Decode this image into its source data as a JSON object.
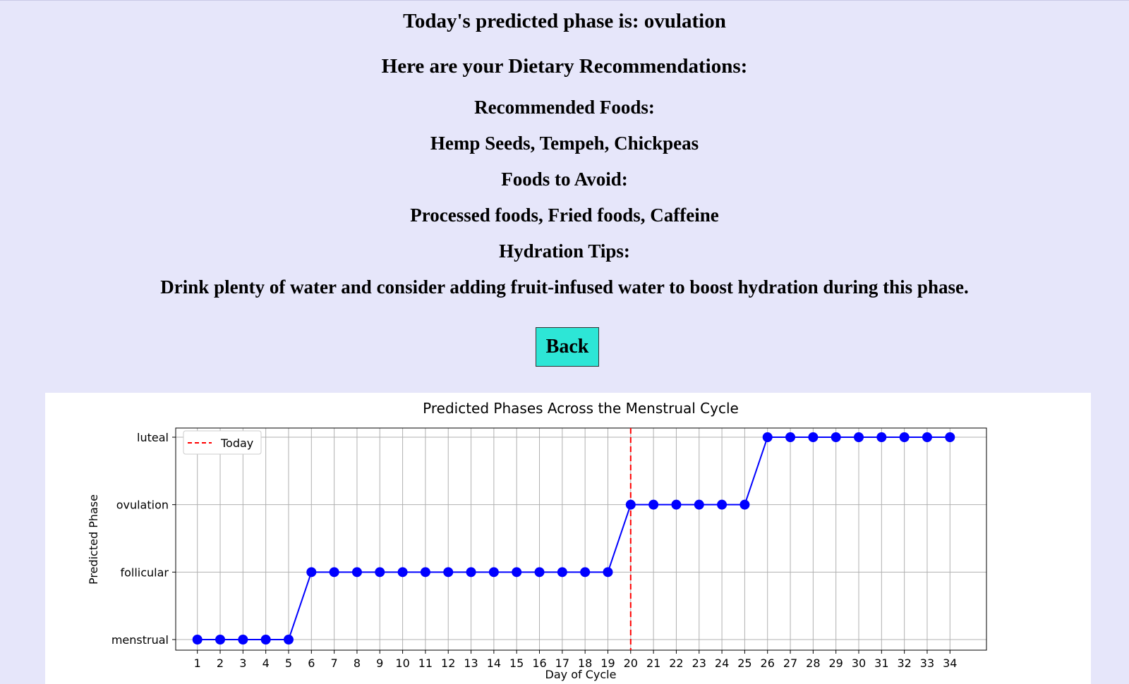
{
  "page": {
    "phase_line": "Today's predicted phase is: ovulation",
    "diet_heading": "Here are your Dietary Recommendations:",
    "recommended_label": "Recommended Foods:",
    "recommended_value": "Hemp Seeds, Tempeh, Chickpeas",
    "avoid_label": "Foods to Avoid:",
    "avoid_value": "Processed foods, Fried foods, Caffeine",
    "hydration_label": "Hydration Tips:",
    "hydration_value": "Drink plenty of water and consider adding fruit-infused water to boost hydration during this phase.",
    "back_label": "Back"
  },
  "colors": {
    "page_bg": "#e6e6fa",
    "button_bg": "#2de6d6",
    "series": "#0000ff",
    "today_line": "#ff0000"
  },
  "chart_data": {
    "type": "line",
    "title": "Predicted Phases Across the Menstrual Cycle",
    "xlabel": "Day of Cycle",
    "ylabel": "Predicted Phase",
    "categories_y": [
      "menstrual",
      "follicular",
      "ovulation",
      "luteal"
    ],
    "x": [
      1,
      2,
      3,
      4,
      5,
      6,
      7,
      8,
      9,
      10,
      11,
      12,
      13,
      14,
      15,
      16,
      17,
      18,
      19,
      20,
      21,
      22,
      23,
      24,
      25,
      26,
      27,
      28,
      29,
      30,
      31,
      32,
      33,
      34
    ],
    "y": [
      "menstrual",
      "menstrual",
      "menstrual",
      "menstrual",
      "menstrual",
      "follicular",
      "follicular",
      "follicular",
      "follicular",
      "follicular",
      "follicular",
      "follicular",
      "follicular",
      "follicular",
      "follicular",
      "follicular",
      "follicular",
      "follicular",
      "follicular",
      "ovulation",
      "ovulation",
      "ovulation",
      "ovulation",
      "ovulation",
      "ovulation",
      "luteal",
      "luteal",
      "luteal",
      "luteal",
      "luteal",
      "luteal",
      "luteal",
      "luteal",
      "luteal"
    ],
    "xticks": [
      "1",
      "2",
      "3",
      "4",
      "5",
      "6",
      "7",
      "8",
      "9",
      "10",
      "11",
      "12",
      "13",
      "14",
      "15",
      "16",
      "17",
      "18",
      "19",
      "20",
      "21",
      "22",
      "23",
      "24",
      "25",
      "26",
      "27",
      "28",
      "29",
      "30",
      "31",
      "32",
      "33",
      "34"
    ],
    "today": 20,
    "legend": [
      {
        "label": "Today",
        "style": "dashed",
        "color": "#ff0000"
      }
    ],
    "legend_position": "top-left",
    "grid": true,
    "xlim": [
      0.05,
      35.6
    ]
  }
}
